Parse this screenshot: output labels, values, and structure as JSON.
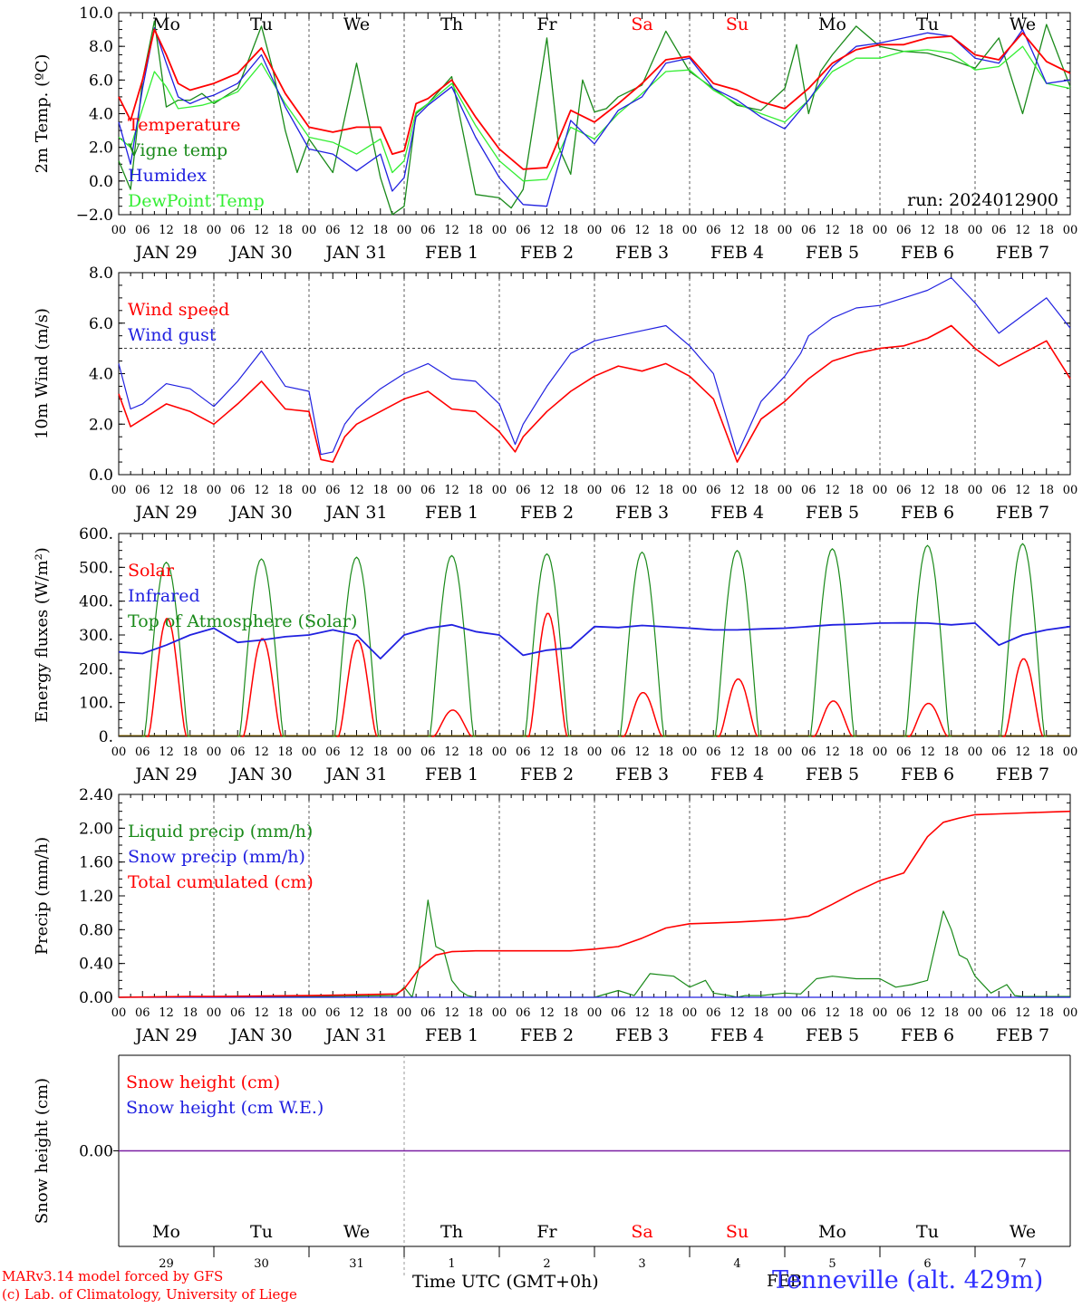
{
  "colors": {
    "red": "#ff0000",
    "green": "#1a8a1a",
    "blue": "#2020e0",
    "lightgreen": "#33ee33",
    "purple": "#7a1fa2",
    "weekend": "#ff0000"
  },
  "days": {
    "names": [
      "Mo",
      "Tu",
      "We",
      "Th",
      "Fr",
      "Sa",
      "Su",
      "Mo",
      "Tu",
      "We"
    ],
    "weekend_flags": [
      false,
      false,
      false,
      false,
      false,
      true,
      true,
      false,
      false,
      false
    ],
    "date_labels": [
      "JAN 29",
      "JAN 30",
      "JAN 31",
      "FEB  1",
      "FEB  2",
      "FEB  3",
      "FEB  4",
      "FEB  5",
      "FEB  6",
      "FEB  7"
    ],
    "day_numbers": [
      "29",
      "30",
      "31",
      "1",
      "2",
      "3",
      "4",
      "5",
      "6",
      "7"
    ],
    "hour_ticks": [
      "00",
      "06",
      "12",
      "18"
    ],
    "final_tick": "00"
  },
  "chart_data": [
    {
      "id": "temperature",
      "type": "line",
      "ylabel": "2m Temp. (ºC)",
      "ylim": [
        -2.0,
        10.0
      ],
      "yticks": [
        "−2.0",
        "0.0",
        "2.0",
        "4.0",
        "6.0",
        "8.0",
        "10.0"
      ],
      "ytick_values": [
        -2,
        0,
        2,
        4,
        6,
        8,
        10
      ],
      "annotation": "run: 2024012900",
      "x_unit": "hours since JAN 29 00 UTC",
      "series": [
        {
          "name": "Temperature",
          "color": "#ff0000",
          "x": [
            0,
            3,
            6,
            9,
            12,
            15,
            18,
            21,
            24,
            30,
            36,
            42,
            48,
            54,
            60,
            66,
            69,
            72,
            75,
            78,
            84,
            90,
            96,
            102,
            108,
            114,
            120,
            126,
            132,
            138,
            144,
            150,
            156,
            162,
            168,
            174,
            180,
            186,
            192,
            198,
            204,
            210,
            216,
            222,
            228,
            234,
            240
          ],
          "values": [
            5.0,
            3.6,
            6.0,
            9.0,
            7.5,
            5.8,
            5.4,
            5.6,
            5.8,
            6.4,
            7.9,
            5.2,
            3.2,
            2.9,
            3.2,
            3.2,
            1.6,
            1.8,
            4.6,
            4.9,
            6.0,
            3.8,
            1.9,
            0.7,
            0.8,
            4.2,
            3.5,
            4.6,
            5.8,
            7.2,
            7.4,
            5.8,
            5.4,
            4.7,
            4.3,
            5.5,
            7.0,
            7.8,
            8.1,
            8.1,
            8.5,
            8.6,
            7.5,
            7.2,
            8.8,
            7.1,
            6.4
          ]
        },
        {
          "name": "Vigne temp",
          "color": "#1a8a1a",
          "x": [
            0,
            3,
            6,
            9,
            12,
            15,
            18,
            21,
            24,
            30,
            36,
            39,
            42,
            45,
            48,
            54,
            60,
            66,
            69,
            72,
            75,
            78,
            84,
            90,
            96,
            99,
            102,
            105,
            108,
            111,
            114,
            117,
            120,
            123,
            126,
            132,
            138,
            144,
            150,
            156,
            162,
            168,
            171,
            174,
            177,
            180,
            186,
            192,
            198,
            204,
            210,
            216,
            222,
            228,
            234,
            240
          ],
          "values": [
            1.2,
            -0.5,
            6.0,
            9.5,
            4.4,
            4.8,
            4.8,
            5.2,
            4.6,
            5.5,
            9.2,
            6.5,
            3.0,
            0.5,
            2.5,
            0.5,
            7.0,
            0.2,
            -2.0,
            -1.5,
            4.0,
            4.6,
            6.2,
            -0.8,
            -1.0,
            -1.6,
            -0.5,
            4.0,
            8.5,
            2.0,
            0.4,
            6.0,
            4.1,
            4.3,
            5.0,
            5.7,
            8.9,
            6.5,
            5.5,
            4.5,
            4.2,
            5.5,
            8.1,
            4.0,
            6.5,
            7.5,
            9.2,
            8.0,
            7.7,
            7.6,
            7.2,
            6.7,
            8.5,
            4.0,
            9.3,
            5.6
          ]
        },
        {
          "name": "Humidex",
          "color": "#2020e0",
          "x": [
            0,
            3,
            6,
            9,
            12,
            15,
            18,
            21,
            24,
            30,
            36,
            42,
            48,
            54,
            60,
            66,
            69,
            72,
            75,
            78,
            84,
            90,
            96,
            102,
            108,
            114,
            120,
            126,
            132,
            138,
            144,
            150,
            156,
            162,
            168,
            174,
            180,
            186,
            192,
            198,
            204,
            210,
            216,
            222,
            228,
            234,
            240
          ],
          "values": [
            3.5,
            1.0,
            5.5,
            9.1,
            7.0,
            5.0,
            4.6,
            4.9,
            5.1,
            5.8,
            7.5,
            4.4,
            1.9,
            1.6,
            0.6,
            1.6,
            -0.6,
            0.2,
            3.8,
            4.5,
            5.6,
            2.6,
            0.2,
            -1.4,
            -1.5,
            3.6,
            2.2,
            4.2,
            5.0,
            7.0,
            7.3,
            5.5,
            4.8,
            3.8,
            3.1,
            4.8,
            6.8,
            8.0,
            8.2,
            8.5,
            8.8,
            8.6,
            7.3,
            7.0,
            9.0,
            5.8,
            6.0
          ]
        },
        {
          "name": "DewPoint Temp",
          "color": "#33ee33",
          "x": [
            0,
            3,
            6,
            9,
            12,
            15,
            18,
            21,
            24,
            30,
            36,
            42,
            48,
            54,
            60,
            66,
            69,
            72,
            75,
            78,
            84,
            90,
            96,
            102,
            108,
            114,
            120,
            126,
            132,
            138,
            144,
            150,
            156,
            162,
            168,
            174,
            180,
            186,
            192,
            198,
            204,
            210,
            216,
            222,
            228,
            234,
            240
          ],
          "values": [
            2.6,
            2.0,
            4.3,
            6.5,
            5.6,
            4.3,
            4.4,
            4.5,
            4.7,
            5.3,
            7.0,
            4.6,
            2.6,
            2.3,
            1.6,
            2.5,
            0.5,
            1.2,
            4.1,
            4.6,
            5.8,
            3.3,
            1.2,
            0.0,
            0.1,
            3.2,
            2.5,
            4.0,
            5.2,
            6.5,
            6.6,
            5.4,
            4.6,
            4.0,
            3.5,
            4.8,
            6.5,
            7.3,
            7.3,
            7.7,
            7.8,
            7.6,
            6.6,
            6.8,
            8.0,
            5.8,
            5.5
          ]
        }
      ]
    },
    {
      "id": "wind",
      "type": "line",
      "ylabel": "10m Wind (m/s)",
      "ylim": [
        0.0,
        8.0
      ],
      "yticks": [
        "0.0",
        "2.0",
        "4.0",
        "6.0",
        "8.0"
      ],
      "ytick_values": [
        0,
        2,
        4,
        6,
        8
      ],
      "reference_line": 5.0,
      "x_unit": "hours since JAN 29 00 UTC",
      "series": [
        {
          "name": "Wind speed",
          "color": "#ff0000",
          "x": [
            0,
            3,
            6,
            12,
            18,
            24,
            30,
            36,
            42,
            48,
            51,
            54,
            57,
            60,
            66,
            72,
            78,
            84,
            90,
            96,
            100,
            102,
            108,
            114,
            120,
            126,
            132,
            138,
            144,
            150,
            156,
            162,
            168,
            172,
            174,
            180,
            186,
            192,
            198,
            204,
            210,
            216,
            222,
            228,
            234,
            240
          ],
          "values": [
            3.2,
            1.9,
            2.2,
            2.8,
            2.5,
            2.0,
            2.8,
            3.7,
            2.6,
            2.5,
            0.6,
            0.5,
            1.5,
            2.0,
            2.5,
            3.0,
            3.3,
            2.6,
            2.5,
            1.7,
            0.9,
            1.5,
            2.5,
            3.3,
            3.9,
            4.3,
            4.1,
            4.4,
            3.9,
            3.0,
            0.5,
            2.2,
            2.9,
            3.5,
            3.8,
            4.5,
            4.8,
            5.0,
            5.1,
            5.4,
            5.9,
            5.0,
            4.3,
            4.8,
            5.3,
            3.8
          ]
        },
        {
          "name": "Wind gust",
          "color": "#2020e0",
          "x": [
            0,
            3,
            6,
            12,
            18,
            24,
            30,
            36,
            42,
            48,
            51,
            54,
            57,
            60,
            66,
            72,
            78,
            84,
            90,
            96,
            100,
            102,
            108,
            114,
            120,
            126,
            132,
            138,
            144,
            150,
            156,
            162,
            168,
            172,
            174,
            180,
            186,
            192,
            198,
            204,
            210,
            216,
            222,
            228,
            234,
            240
          ],
          "values": [
            4.4,
            2.6,
            2.8,
            3.6,
            3.4,
            2.7,
            3.7,
            4.9,
            3.5,
            3.3,
            0.8,
            0.9,
            2.0,
            2.6,
            3.4,
            4.0,
            4.4,
            3.8,
            3.7,
            2.8,
            1.2,
            2.0,
            3.5,
            4.8,
            5.3,
            5.5,
            5.7,
            5.9,
            5.1,
            4.0,
            0.8,
            2.9,
            3.9,
            4.8,
            5.5,
            6.2,
            6.6,
            6.7,
            7.0,
            7.3,
            7.8,
            6.8,
            5.6,
            6.3,
            7.0,
            5.8
          ]
        }
      ]
    },
    {
      "id": "energy",
      "type": "line",
      "ylabel": "Energy fluxes (W/m²)",
      "ylim": [
        0,
        600
      ],
      "yticks": [
        "0.",
        "100.",
        "200.",
        "300.",
        "400.",
        "500.",
        "600."
      ],
      "ytick_values": [
        0,
        100,
        200,
        300,
        400,
        500,
        600
      ],
      "x_unit": "hours since JAN 29 00 UTC",
      "solar_noon_hour": 12,
      "series": [
        {
          "name": "Solar",
          "color": "#ff0000",
          "daily_peak": [
            350,
            290,
            285,
            78,
            365,
            130,
            170,
            105,
            98,
            230
          ]
        },
        {
          "name": "Infrared",
          "color": "#2020e0",
          "x": [
            0,
            6,
            12,
            18,
            24,
            30,
            36,
            42,
            48,
            54,
            60,
            66,
            72,
            78,
            84,
            90,
            96,
            102,
            108,
            114,
            120,
            126,
            132,
            138,
            144,
            150,
            156,
            162,
            168,
            174,
            180,
            186,
            192,
            198,
            204,
            210,
            216,
            222,
            228,
            234,
            240
          ],
          "values": [
            250,
            245,
            270,
            300,
            320,
            278,
            285,
            295,
            300,
            315,
            300,
            230,
            300,
            320,
            330,
            310,
            300,
            240,
            255,
            262,
            325,
            322,
            328,
            324,
            320,
            315,
            315,
            318,
            320,
            325,
            330,
            332,
            335,
            336,
            335,
            330,
            335,
            270,
            300,
            315,
            325
          ]
        },
        {
          "name": "Top of Atmosphere (Solar)",
          "color": "#1a8a1a",
          "daily_peak": [
            515,
            525,
            530,
            535,
            540,
            545,
            550,
            555,
            565,
            570
          ]
        }
      ]
    },
    {
      "id": "precip",
      "type": "line",
      "ylabel": "Precip (mm/h)",
      "ylim": [
        0.0,
        2.4
      ],
      "yticks": [
        "0.00",
        "0.40",
        "0.80",
        "1.20",
        "1.60",
        "2.00",
        "2.40"
      ],
      "ytick_values": [
        0,
        0.4,
        0.8,
        1.2,
        1.6,
        2.0,
        2.4
      ],
      "x_unit": "hours since JAN 29 00 UTC",
      "series": [
        {
          "name": "Liquid precip (mm/h)",
          "color": "#1a8a1a",
          "x": [
            0,
            18,
            24,
            48,
            70,
            72,
            74,
            76,
            78,
            80,
            82,
            84,
            86,
            88,
            90,
            120,
            126,
            130,
            134,
            140,
            144,
            148,
            150,
            154,
            156,
            158,
            162,
            168,
            172,
            176,
            180,
            186,
            192,
            196,
            200,
            204,
            208,
            210,
            212,
            214,
            216,
            220,
            224,
            226,
            228,
            240
          ],
          "values": [
            0,
            0.01,
            0.01,
            0.01,
            0.02,
            0.12,
            0.0,
            0.4,
            1.15,
            0.6,
            0.55,
            0.2,
            0.08,
            0.02,
            0.0,
            0.0,
            0.08,
            0.02,
            0.28,
            0.25,
            0.12,
            0.2,
            0.05,
            0.02,
            0.0,
            0.02,
            0.02,
            0.05,
            0.04,
            0.22,
            0.25,
            0.22,
            0.22,
            0.12,
            0.15,
            0.2,
            1.02,
            0.8,
            0.5,
            0.45,
            0.25,
            0.05,
            0.15,
            0.02,
            0.01,
            0.01
          ]
        },
        {
          "name": "Snow precip (mm/h)",
          "color": "#2020e0",
          "x": [
            0,
            240
          ],
          "values": [
            0,
            0
          ]
        },
        {
          "name": "Total cumulated (cm)",
          "color": "#ff0000",
          "x": [
            0,
            18,
            24,
            48,
            60,
            70,
            72,
            76,
            80,
            84,
            90,
            96,
            108,
            114,
            120,
            126,
            132,
            138,
            144,
            150,
            156,
            168,
            174,
            180,
            186,
            192,
            198,
            204,
            208,
            212,
            216,
            222,
            228,
            234,
            240
          ],
          "values": [
            0,
            0.01,
            0.01,
            0.02,
            0.03,
            0.04,
            0.1,
            0.35,
            0.5,
            0.54,
            0.55,
            0.55,
            0.55,
            0.55,
            0.57,
            0.6,
            0.7,
            0.82,
            0.87,
            0.88,
            0.89,
            0.92,
            0.96,
            1.1,
            1.25,
            1.38,
            1.47,
            1.9,
            2.07,
            2.12,
            2.16,
            2.17,
            2.18,
            2.19,
            2.2
          ]
        }
      ]
    },
    {
      "id": "snow",
      "type": "line",
      "ylabel": "Snow height (cm)",
      "ylim": [
        -1,
        1
      ],
      "yticks": [
        "0.00"
      ],
      "ytick_values": [
        0
      ],
      "x_unit": "hours since JAN 29 00 UTC",
      "series": [
        {
          "name": "Snow height (cm)",
          "color": "#ff0000",
          "x": [
            0,
            240
          ],
          "values": [
            0,
            0
          ]
        },
        {
          "name": "Snow height (cm W.E.)",
          "color": "#2020e0",
          "x": [
            0,
            240
          ],
          "values": [
            0,
            0
          ]
        }
      ]
    }
  ],
  "footer": {
    "credit_line1": "MARv3.14 model forced by GFS",
    "credit_line2": "(c) Lab. of Climatology, University of Liege",
    "xaxis_title": "Time UTC (GMT+0h)",
    "month_label": "FEB",
    "station": "Tenneville (alt. 429m)"
  }
}
